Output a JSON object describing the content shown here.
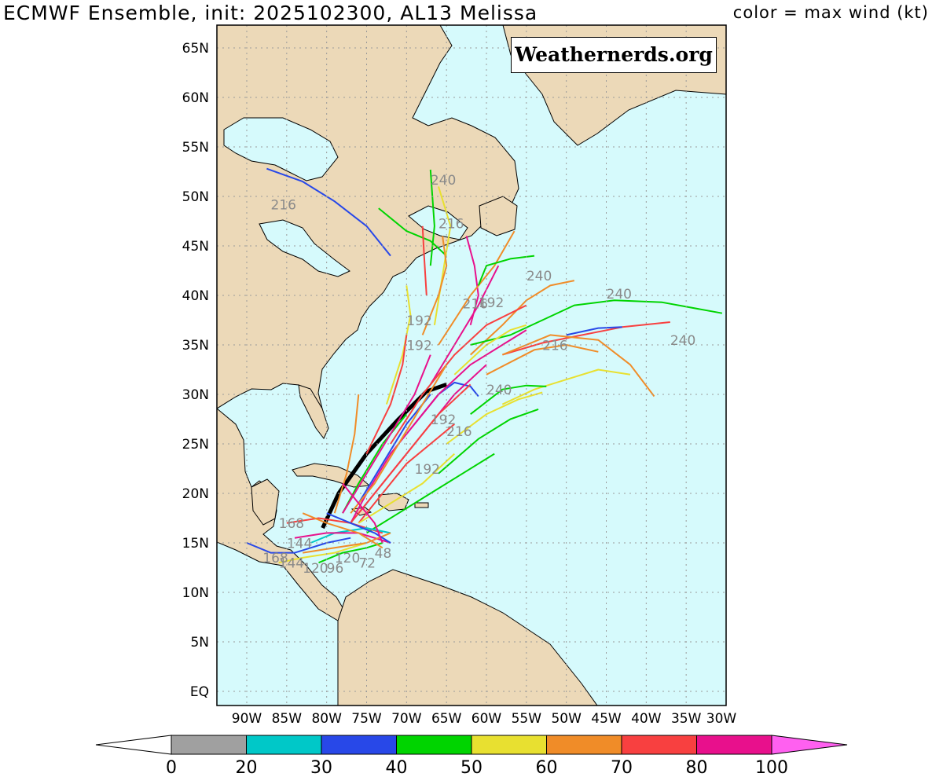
{
  "header": {
    "title": "ECMWF Ensemble, init: 2025102300, AL13 Melissa",
    "legend_note": "color = max wind (kt)"
  },
  "credit": "Weathernerds.org",
  "map": {
    "lat_ticks": [
      "65N",
      "60N",
      "55N",
      "50N",
      "45N",
      "40N",
      "35N",
      "30N",
      "25N",
      "20N",
      "15N",
      "10N",
      "5N",
      "EQ"
    ],
    "lon_ticks": [
      "90W",
      "85W",
      "80W",
      "75W",
      "70W",
      "65W",
      "60W",
      "55W",
      "50W",
      "45W",
      "40W",
      "35W",
      "30W"
    ],
    "colors": {
      "ocean": "#d6fafc",
      "land": "#ecd9b8",
      "grid": "#9a9a9a",
      "coast": "#000000"
    }
  },
  "forecast_hour_labels": [
    "240",
    "216",
    "240",
    "216",
    "192",
    "240",
    "192",
    "240",
    "216",
    "240",
    "216",
    "192",
    "216",
    "192",
    "192",
    "168",
    "144",
    "120",
    "168",
    "144",
    "120",
    "96",
    "72",
    "48"
  ],
  "colorbar": {
    "labels": [
      "0",
      "20",
      "30",
      "40",
      "50",
      "60",
      "70",
      "80",
      "100"
    ],
    "colors": [
      "#ffffff",
      "#a0a0a0",
      "#00c8c8",
      "#2848e8",
      "#00d400",
      "#e8e030",
      "#f08c28",
      "#f84040",
      "#e8108c",
      "#ff60f0"
    ]
  },
  "tracks": [
    {
      "color": "#000000",
      "points": [
        [
          -80.5,
          16.5
        ],
        [
          -78.5,
          20
        ],
        [
          -75,
          24
        ],
        [
          -71,
          27.5
        ],
        [
          -67.5,
          30.3
        ],
        [
          -65,
          31
        ]
      ]
    },
    {
      "color": "#2848e8",
      "points": [
        [
          -87.5,
          52.8
        ],
        [
          -83,
          51.5
        ],
        [
          -79,
          49.5
        ],
        [
          -75,
          47
        ],
        [
          -72,
          44
        ]
      ]
    },
    {
      "color": "#00d400",
      "points": [
        [
          -73.5,
          48.8
        ],
        [
          -70,
          46.5
        ],
        [
          -67,
          45.5
        ],
        [
          -65,
          44
        ]
      ]
    },
    {
      "color": "#00d400",
      "points": [
        [
          -67,
          52.7
        ],
        [
          -66.5,
          47
        ],
        [
          -67,
          43
        ]
      ]
    },
    {
      "color": "#e8e030",
      "points": [
        [
          -66,
          51
        ],
        [
          -64.5,
          47
        ],
        [
          -65.5,
          42
        ],
        [
          -66.5,
          37
        ]
      ]
    },
    {
      "color": "#f84040",
      "points": [
        [
          -68,
          47
        ],
        [
          -67.8,
          44
        ],
        [
          -67.5,
          40
        ]
      ]
    },
    {
      "color": "#f08c28",
      "points": [
        [
          -65.5,
          46
        ],
        [
          -65,
          43
        ],
        [
          -66,
          40
        ],
        [
          -68,
          36
        ]
      ]
    },
    {
      "color": "#e8108c",
      "points": [
        [
          -62.5,
          46
        ],
        [
          -61.5,
          43
        ],
        [
          -61,
          40
        ],
        [
          -62,
          37
        ]
      ]
    },
    {
      "color": "#f08c28",
      "points": [
        [
          -56.5,
          46.5
        ],
        [
          -59,
          43
        ],
        [
          -62,
          40
        ],
        [
          -66,
          35
        ]
      ]
    },
    {
      "color": "#00d400",
      "points": [
        [
          -54,
          44
        ],
        [
          -57,
          43.7
        ],
        [
          -60,
          43
        ],
        [
          -61,
          41
        ]
      ]
    },
    {
      "color": "#e8108c",
      "points": [
        [
          -58.5,
          43
        ],
        [
          -61,
          39
        ],
        [
          -64,
          35
        ],
        [
          -67,
          31
        ]
      ]
    },
    {
      "color": "#f08c28",
      "points": [
        [
          -49,
          41.5
        ],
        [
          -52,
          41
        ],
        [
          -55,
          39.5
        ],
        [
          -58,
          37
        ],
        [
          -62,
          34
        ]
      ]
    },
    {
      "color": "#00d400",
      "points": [
        [
          -30.5,
          38.2
        ],
        [
          -38,
          39.3
        ],
        [
          -44,
          39.5
        ],
        [
          -49,
          39
        ],
        [
          -53,
          37.5
        ],
        [
          -57,
          36
        ],
        [
          -62,
          35
        ]
      ]
    },
    {
      "color": "#f84040",
      "points": [
        [
          -37,
          37.3
        ],
        [
          -43,
          36.8
        ],
        [
          -48,
          36
        ],
        [
          -53,
          35.2
        ],
        [
          -58,
          34
        ]
      ]
    },
    {
      "color": "#2848e8",
      "points": [
        [
          -43,
          36.8
        ],
        [
          -46,
          36.7
        ],
        [
          -50,
          36
        ]
      ]
    },
    {
      "color": "#f08c28",
      "points": [
        [
          -39,
          29.8
        ],
        [
          -42,
          33
        ],
        [
          -46,
          35.5
        ],
        [
          -52,
          36
        ],
        [
          -58,
          34
        ]
      ]
    },
    {
      "color": "#e8e030",
      "points": [
        [
          -42,
          32
        ],
        [
          -46,
          32.5
        ],
        [
          -50,
          31.5
        ],
        [
          -54,
          30.5
        ],
        [
          -58,
          29
        ]
      ]
    },
    {
      "color": "#f08c28",
      "points": [
        [
          -46,
          34.3
        ],
        [
          -50,
          35
        ],
        [
          -54,
          34.5
        ],
        [
          -60,
          32
        ]
      ]
    },
    {
      "color": "#00d400",
      "points": [
        [
          -52.5,
          30.8
        ],
        [
          -55,
          30.9
        ],
        [
          -58,
          30.5
        ],
        [
          -62,
          28
        ]
      ]
    },
    {
      "color": "#e8e030",
      "points": [
        [
          -53,
          30.2
        ],
        [
          -56,
          29.5
        ],
        [
          -60,
          28
        ],
        [
          -65,
          25
        ]
      ]
    },
    {
      "color": "#00d400",
      "points": [
        [
          -53.5,
          28.5
        ],
        [
          -57,
          27.5
        ],
        [
          -61,
          25.5
        ],
        [
          -66,
          22
        ]
      ]
    },
    {
      "color": "#2848e8",
      "points": [
        [
          -61,
          29.8
        ],
        [
          -62,
          30.8
        ],
        [
          -64,
          31.2
        ],
        [
          -66,
          30
        ],
        [
          -69,
          27
        ]
      ]
    },
    {
      "color": "#e8e030",
      "points": [
        [
          -55,
          37
        ],
        [
          -57,
          36.5
        ],
        [
          -60,
          35
        ],
        [
          -64,
          32
        ]
      ]
    },
    {
      "color": "#e8108c",
      "points": [
        [
          -55,
          36.5
        ],
        [
          -58,
          35
        ],
        [
          -62,
          33
        ],
        [
          -66,
          30
        ],
        [
          -70,
          26
        ]
      ]
    },
    {
      "color": "#f84040",
      "points": [
        [
          -55,
          39
        ],
        [
          -60,
          37
        ],
        [
          -64,
          34
        ],
        [
          -68,
          30
        ],
        [
          -72,
          25
        ]
      ]
    },
    {
      "color": "#e8e030",
      "points": [
        [
          -70,
          41
        ],
        [
          -69.5,
          38
        ],
        [
          -70.5,
          34
        ],
        [
          -72.5,
          29
        ]
      ]
    },
    {
      "color": "#f84040",
      "points": [
        [
          -70,
          36
        ],
        [
          -70.5,
          33
        ],
        [
          -72,
          29
        ],
        [
          -75,
          24
        ]
      ]
    },
    {
      "color": "#f08c28",
      "points": [
        [
          -76,
          30
        ],
        [
          -76.5,
          26
        ],
        [
          -77.5,
          22
        ],
        [
          -79,
          18
        ]
      ]
    },
    {
      "color": "#e8108c",
      "points": [
        [
          -66,
          30
        ],
        [
          -69,
          27
        ],
        [
          -72,
          24
        ],
        [
          -75,
          20
        ],
        [
          -77,
          17
        ]
      ]
    },
    {
      "color": "#f84040",
      "points": [
        [
          -64,
          27
        ],
        [
          -67,
          25
        ],
        [
          -70,
          23
        ],
        [
          -73,
          20
        ],
        [
          -76,
          17
        ]
      ]
    },
    {
      "color": "#2848e8",
      "points": [
        [
          -67,
          30
        ],
        [
          -70,
          27
        ],
        [
          -73,
          23
        ],
        [
          -76,
          19
        ]
      ]
    },
    {
      "color": "#00d400",
      "points": [
        [
          -70,
          28
        ],
        [
          -73,
          25
        ],
        [
          -76,
          21
        ],
        [
          -78,
          18
        ]
      ]
    },
    {
      "color": "#e8108c",
      "points": [
        [
          -60,
          33
        ],
        [
          -64,
          30
        ],
        [
          -68,
          26
        ],
        [
          -72,
          22
        ],
        [
          -76,
          18
        ]
      ]
    },
    {
      "color": "#f84040",
      "points": [
        [
          -62,
          31
        ],
        [
          -66,
          28
        ],
        [
          -70,
          24
        ],
        [
          -74,
          20
        ],
        [
          -77,
          17
        ]
      ]
    },
    {
      "color": "#e8108c",
      "points": [
        [
          -67,
          34
        ],
        [
          -69,
          30
        ],
        [
          -72,
          26
        ],
        [
          -75,
          22
        ],
        [
          -78,
          18
        ]
      ]
    },
    {
      "color": "#f08c28",
      "points": [
        [
          -65,
          33
        ],
        [
          -68,
          29
        ],
        [
          -71,
          25
        ],
        [
          -74,
          21
        ],
        [
          -77,
          18
        ]
      ]
    },
    {
      "color": "#00d400",
      "points": [
        [
          -59,
          24
        ],
        [
          -63,
          22
        ],
        [
          -67,
          20
        ],
        [
          -71,
          18
        ],
        [
          -75,
          16
        ]
      ]
    },
    {
      "color": "#e8e030",
      "points": [
        [
          -64,
          24
        ],
        [
          -68,
          21
        ],
        [
          -72,
          19
        ],
        [
          -76,
          17
        ]
      ]
    },
    {
      "color": "#2848e8",
      "points": [
        [
          -90,
          15
        ],
        [
          -87,
          14
        ],
        [
          -84,
          14
        ],
        [
          -80,
          15
        ],
        [
          -77,
          15.5
        ]
      ]
    },
    {
      "color": "#e8e030",
      "points": [
        [
          -86,
          13
        ],
        [
          -83,
          13.5
        ],
        [
          -79,
          14
        ],
        [
          -75,
          15
        ]
      ]
    },
    {
      "color": "#f84040",
      "points": [
        [
          -85,
          17
        ],
        [
          -81,
          17.5
        ],
        [
          -77,
          17
        ],
        [
          -73,
          16
        ]
      ]
    },
    {
      "color": "#00c8c8",
      "points": [
        [
          -82,
          15
        ],
        [
          -79,
          16
        ],
        [
          -75,
          16.5
        ],
        [
          -72,
          16
        ]
      ]
    },
    {
      "color": "#e8108c",
      "points": [
        [
          -84,
          15.5
        ],
        [
          -80,
          16
        ],
        [
          -76,
          16
        ],
        [
          -72,
          15
        ]
      ]
    },
    {
      "color": "#00d400",
      "points": [
        [
          -81,
          13
        ],
        [
          -78,
          14
        ],
        [
          -75,
          14.5
        ],
        [
          -73,
          15
        ]
      ]
    },
    {
      "color": "#f08c28",
      "points": [
        [
          -83,
          14
        ],
        [
          -79,
          14.5
        ],
        [
          -75,
          15
        ],
        [
          -72,
          16
        ]
      ]
    },
    {
      "color": "#2848e8",
      "points": [
        [
          -80,
          18
        ],
        [
          -77,
          17
        ],
        [
          -74,
          16
        ],
        [
          -72,
          15
        ]
      ]
    },
    {
      "color": "#e8108c",
      "points": [
        [
          -78,
          21
        ],
        [
          -76,
          19
        ],
        [
          -74,
          17
        ],
        [
          -73,
          15
        ]
      ]
    },
    {
      "color": "#f08c28",
      "points": [
        [
          -83,
          18
        ],
        [
          -80,
          17
        ],
        [
          -76,
          16
        ],
        [
          -73,
          14.5
        ]
      ]
    }
  ],
  "hour_label_positions_deg": []
}
